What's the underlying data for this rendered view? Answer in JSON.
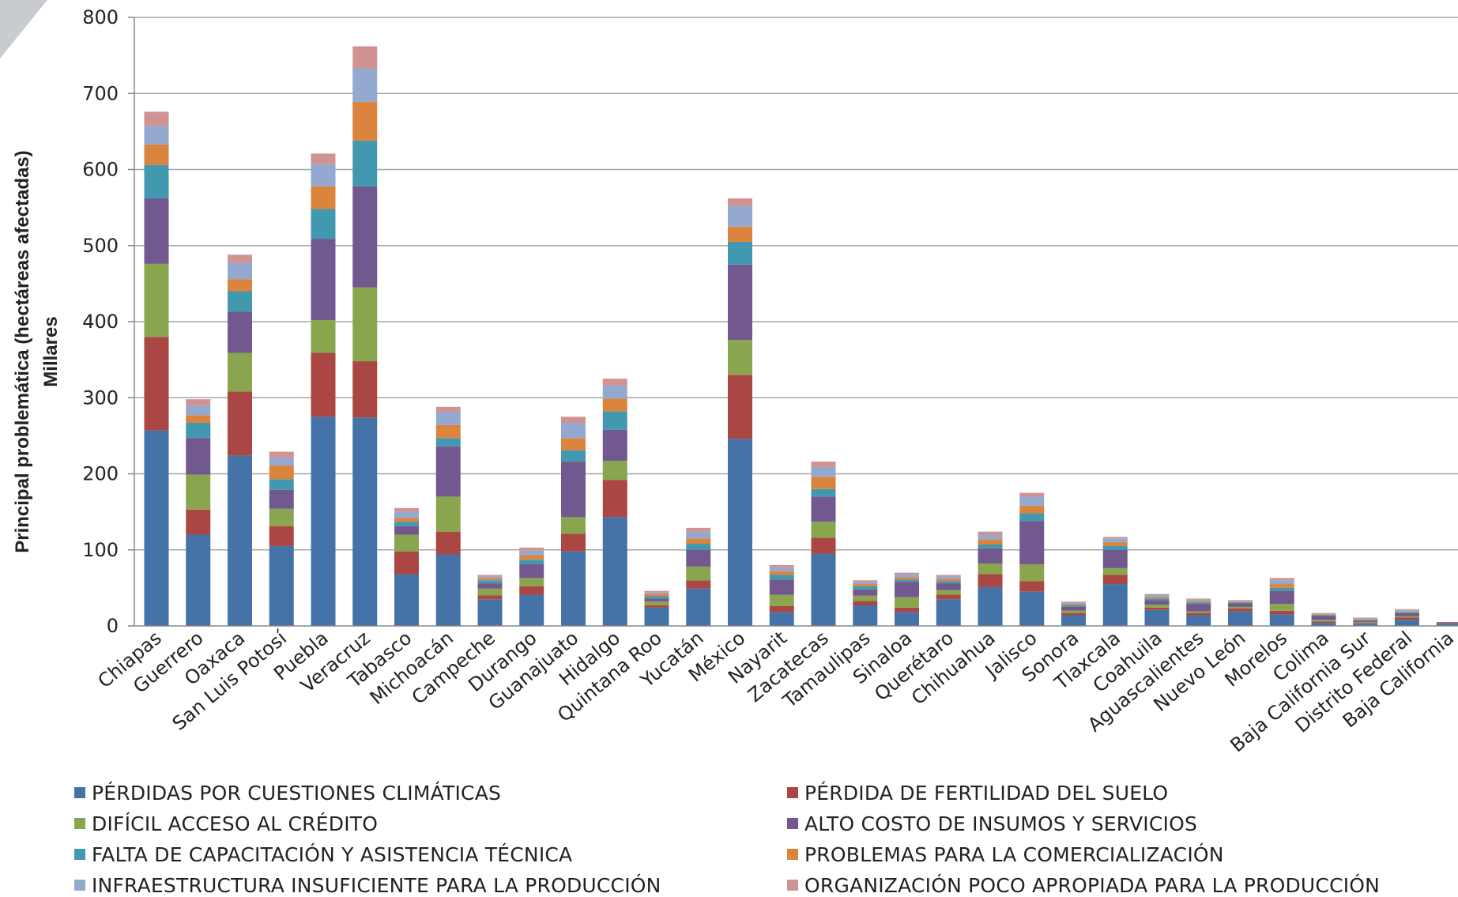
{
  "chart_data": {
    "type": "bar",
    "stacked": true,
    "ylabel_line1": "Principal problemática (hectáreas afectadas)",
    "ylabel_line2": "Millares",
    "ylim": [
      0,
      800
    ],
    "yticks": [
      0,
      100,
      200,
      300,
      400,
      500,
      600,
      700,
      800
    ],
    "grid": true,
    "legend_position": "bottom",
    "categories": [
      "Chiapas",
      "Guerrero",
      "Oaxaca",
      "San Luis Potosí",
      "Puebla",
      "Veracruz",
      "Tabasco",
      "Michoacán",
      "Campeche",
      "Durango",
      "Guanajuato",
      "Hidalgo",
      "Quintana Roo",
      "Yucatán",
      "México",
      "Nayarit",
      "Zacatecas",
      "Tamaulipas",
      "Sinaloa",
      "Querétaro",
      "Chihuahua",
      "Jalisco",
      "Sonora",
      "Tlaxcala",
      "Coahuila",
      "Aguascalientes",
      "Nuevo León",
      "Morelos",
      "Colima",
      "Baja California Sur",
      "Distrito Federal",
      "Baja California"
    ],
    "series": [
      {
        "name": "PÉRDIDAS POR CUESTIONES CLIMÁTICAS",
        "color": "#4572a7",
        "values": [
          257,
          120,
          224,
          105,
          275,
          274,
          68,
          94,
          35,
          41,
          98,
          143,
          24,
          49,
          246,
          18,
          95,
          27,
          18,
          35,
          51,
          45,
          14,
          55,
          21,
          14,
          19,
          15,
          4,
          3,
          8,
          3
        ]
      },
      {
        "name": "PÉRDIDA DE FERTILIDAD DEL SUELO",
        "color": "#aa4643",
        "values": [
          123,
          33,
          84,
          26,
          84,
          74,
          30,
          30,
          5,
          11,
          23,
          49,
          3,
          11,
          84,
          8,
          21,
          6,
          6,
          6,
          17,
          14,
          3,
          12,
          3,
          3,
          4,
          5,
          2,
          1,
          3,
          1
        ]
      },
      {
        "name": "DIFÍCIL ACCESO AL CRÉDITO",
        "color": "#89a54e",
        "values": [
          96,
          46,
          51,
          23,
          43,
          97,
          22,
          46,
          9,
          11,
          22,
          25,
          5,
          18,
          46,
          15,
          21,
          7,
          14,
          6,
          14,
          22,
          3,
          9,
          4,
          2,
          2,
          9,
          2,
          1,
          2,
          0
        ]
      },
      {
        "name": "ALTO COSTO DE INSUMOS Y SERVICIOS",
        "color": "#71588f",
        "values": [
          86,
          48,
          54,
          25,
          107,
          133,
          11,
          66,
          7,
          18,
          73,
          41,
          4,
          22,
          99,
          20,
          33,
          8,
          20,
          9,
          20,
          57,
          5,
          24,
          6,
          10,
          5,
          17,
          5,
          2,
          4,
          1
        ]
      },
      {
        "name": "FALTA DE CAPACITACIÓN Y ASISTENCIA TÉCNICA",
        "color": "#4198af",
        "values": [
          44,
          20,
          27,
          14,
          39,
          60,
          6,
          11,
          4,
          6,
          15,
          24,
          3,
          8,
          30,
          6,
          10,
          4,
          3,
          3,
          5,
          10,
          2,
          5,
          2,
          2,
          1,
          4,
          1,
          1,
          1,
          0
        ]
      },
      {
        "name": "PROBLEMAS PARA LA  COMERCIALIZACIÓN",
        "color": "#db843d",
        "values": [
          27,
          10,
          16,
          18,
          30,
          51,
          5,
          17,
          3,
          6,
          16,
          17,
          3,
          7,
          20,
          5,
          16,
          3,
          3,
          3,
          7,
          10,
          2,
          5,
          2,
          2,
          1,
          5,
          1,
          1,
          1,
          0
        ]
      },
      {
        "name": "INFRAESTRUCTURA INSUFICIENTE PARA LA PRODUCCIÓN",
        "color": "#93a9cf",
        "values": [
          24,
          13,
          21,
          10,
          29,
          44,
          8,
          17,
          2,
          6,
          20,
          17,
          2,
          9,
          27,
          5,
          13,
          3,
          4,
          3,
          6,
          12,
          2,
          5,
          3,
          2,
          1,
          5,
          1,
          1,
          2,
          0
        ]
      },
      {
        "name": "ORGANIZACIÓN POCO APROPIADA PARA LA PRODUCCIÓN",
        "color": "#d19392",
        "values": [
          19,
          8,
          11,
          8,
          14,
          29,
          5,
          7,
          2,
          4,
          8,
          9,
          2,
          5,
          10,
          3,
          7,
          2,
          2,
          2,
          4,
          5,
          1,
          2,
          1,
          1,
          1,
          3,
          1,
          1,
          1,
          0
        ]
      }
    ]
  }
}
